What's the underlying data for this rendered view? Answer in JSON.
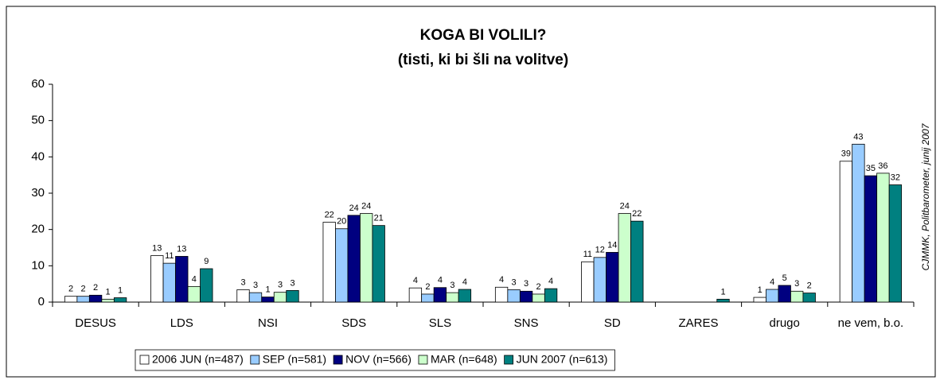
{
  "chart_data": {
    "type": "bar",
    "title": "KOGA BI VOLILI?",
    "subtitle": "(tisti, ki bi šli na volitve)",
    "source": "CJMMK, Politbarometer, junij 2007",
    "categories": [
      "DESUS",
      "LDS",
      "NSI",
      "SDS",
      "SLS",
      "SNS",
      "SD",
      "ZARES",
      "drugo",
      "ne vem, b.o."
    ],
    "series": [
      {
        "name": "2006 JUN (n=487)",
        "color": "#ffffff",
        "values": [
          1.6,
          12.8,
          3.4,
          22,
          3.9,
          4.1,
          11.1,
          null,
          1.3,
          38.8
        ],
        "value_labels": [
          "2",
          "13",
          "3",
          "22",
          "4",
          "4",
          "11",
          null,
          "1",
          "39"
        ]
      },
      {
        "name": "SEP (n=581)",
        "color": "#99ccff",
        "values": [
          1.6,
          10.7,
          2.6,
          20.2,
          2.2,
          3.4,
          12.3,
          null,
          3.5,
          43.5
        ],
        "value_labels": [
          "2",
          "11",
          "3",
          "20",
          "2",
          "3",
          "12",
          null,
          "4",
          "43"
        ]
      },
      {
        "name": "NOV (n=566)",
        "color": "#000080",
        "values": [
          1.9,
          12.6,
          1.4,
          23.9,
          4.0,
          3.0,
          13.7,
          null,
          4.6,
          34.8
        ],
        "value_labels": [
          "2",
          "13",
          "1",
          "24",
          "4",
          "3",
          "14",
          null,
          "5",
          "35"
        ]
      },
      {
        "name": "MAR (n=648)",
        "color": "#ccffcc",
        "values": [
          0.8,
          4.3,
          2.7,
          24.4,
          2.6,
          2.2,
          24.4,
          null,
          3.0,
          35.5
        ],
        "value_labels": [
          "1",
          "4",
          "3",
          "24",
          "3",
          "2",
          "24",
          null,
          "3",
          "36"
        ]
      },
      {
        "name": "JUN 2007 (n=613)",
        "color": "#008080",
        "values": [
          1.2,
          9.2,
          3.2,
          21.1,
          3.5,
          3.7,
          22.3,
          0.8,
          2.5,
          32.3
        ],
        "value_labels": [
          "1",
          "9",
          "3",
          "21",
          "4",
          "4",
          "22",
          "1",
          "2",
          "32"
        ]
      }
    ],
    "ylim": [
      0,
      60
    ],
    "yticks": [
      0,
      10,
      20,
      30,
      40,
      50,
      60
    ],
    "grid": false,
    "legend": "bottom"
  }
}
